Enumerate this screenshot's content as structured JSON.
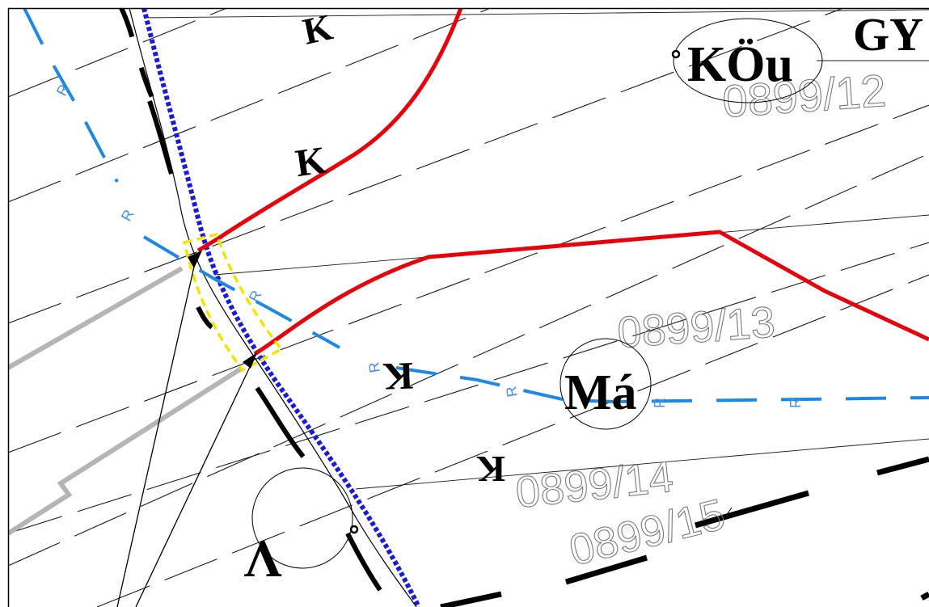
{
  "colors": {
    "background": "#ffffff",
    "frame": "#000000",
    "boundary_red": "#e8000b",
    "utility_blue": "#1e88e5",
    "boundary_dotted_blue": "#1a1adb",
    "road_gray": "#b5b5b5",
    "highlight_yellow": "#f2e600",
    "dashed_black": "#000000",
    "contour_black": "#1a1a1a"
  },
  "labels": {
    "parcel_12": "0899/12",
    "parcel_13": "0899/13",
    "parcel_14": "0899/14",
    "parcel_15": "0899/15",
    "land_use_koeu": "KÖu",
    "land_use_gy": "GY",
    "land_use_ma": "Má",
    "land_use_v": "V",
    "contour_k": "K",
    "utility_r": "R"
  },
  "icons": [
    "pointer-arrow-icon",
    "survey-point-icon"
  ]
}
